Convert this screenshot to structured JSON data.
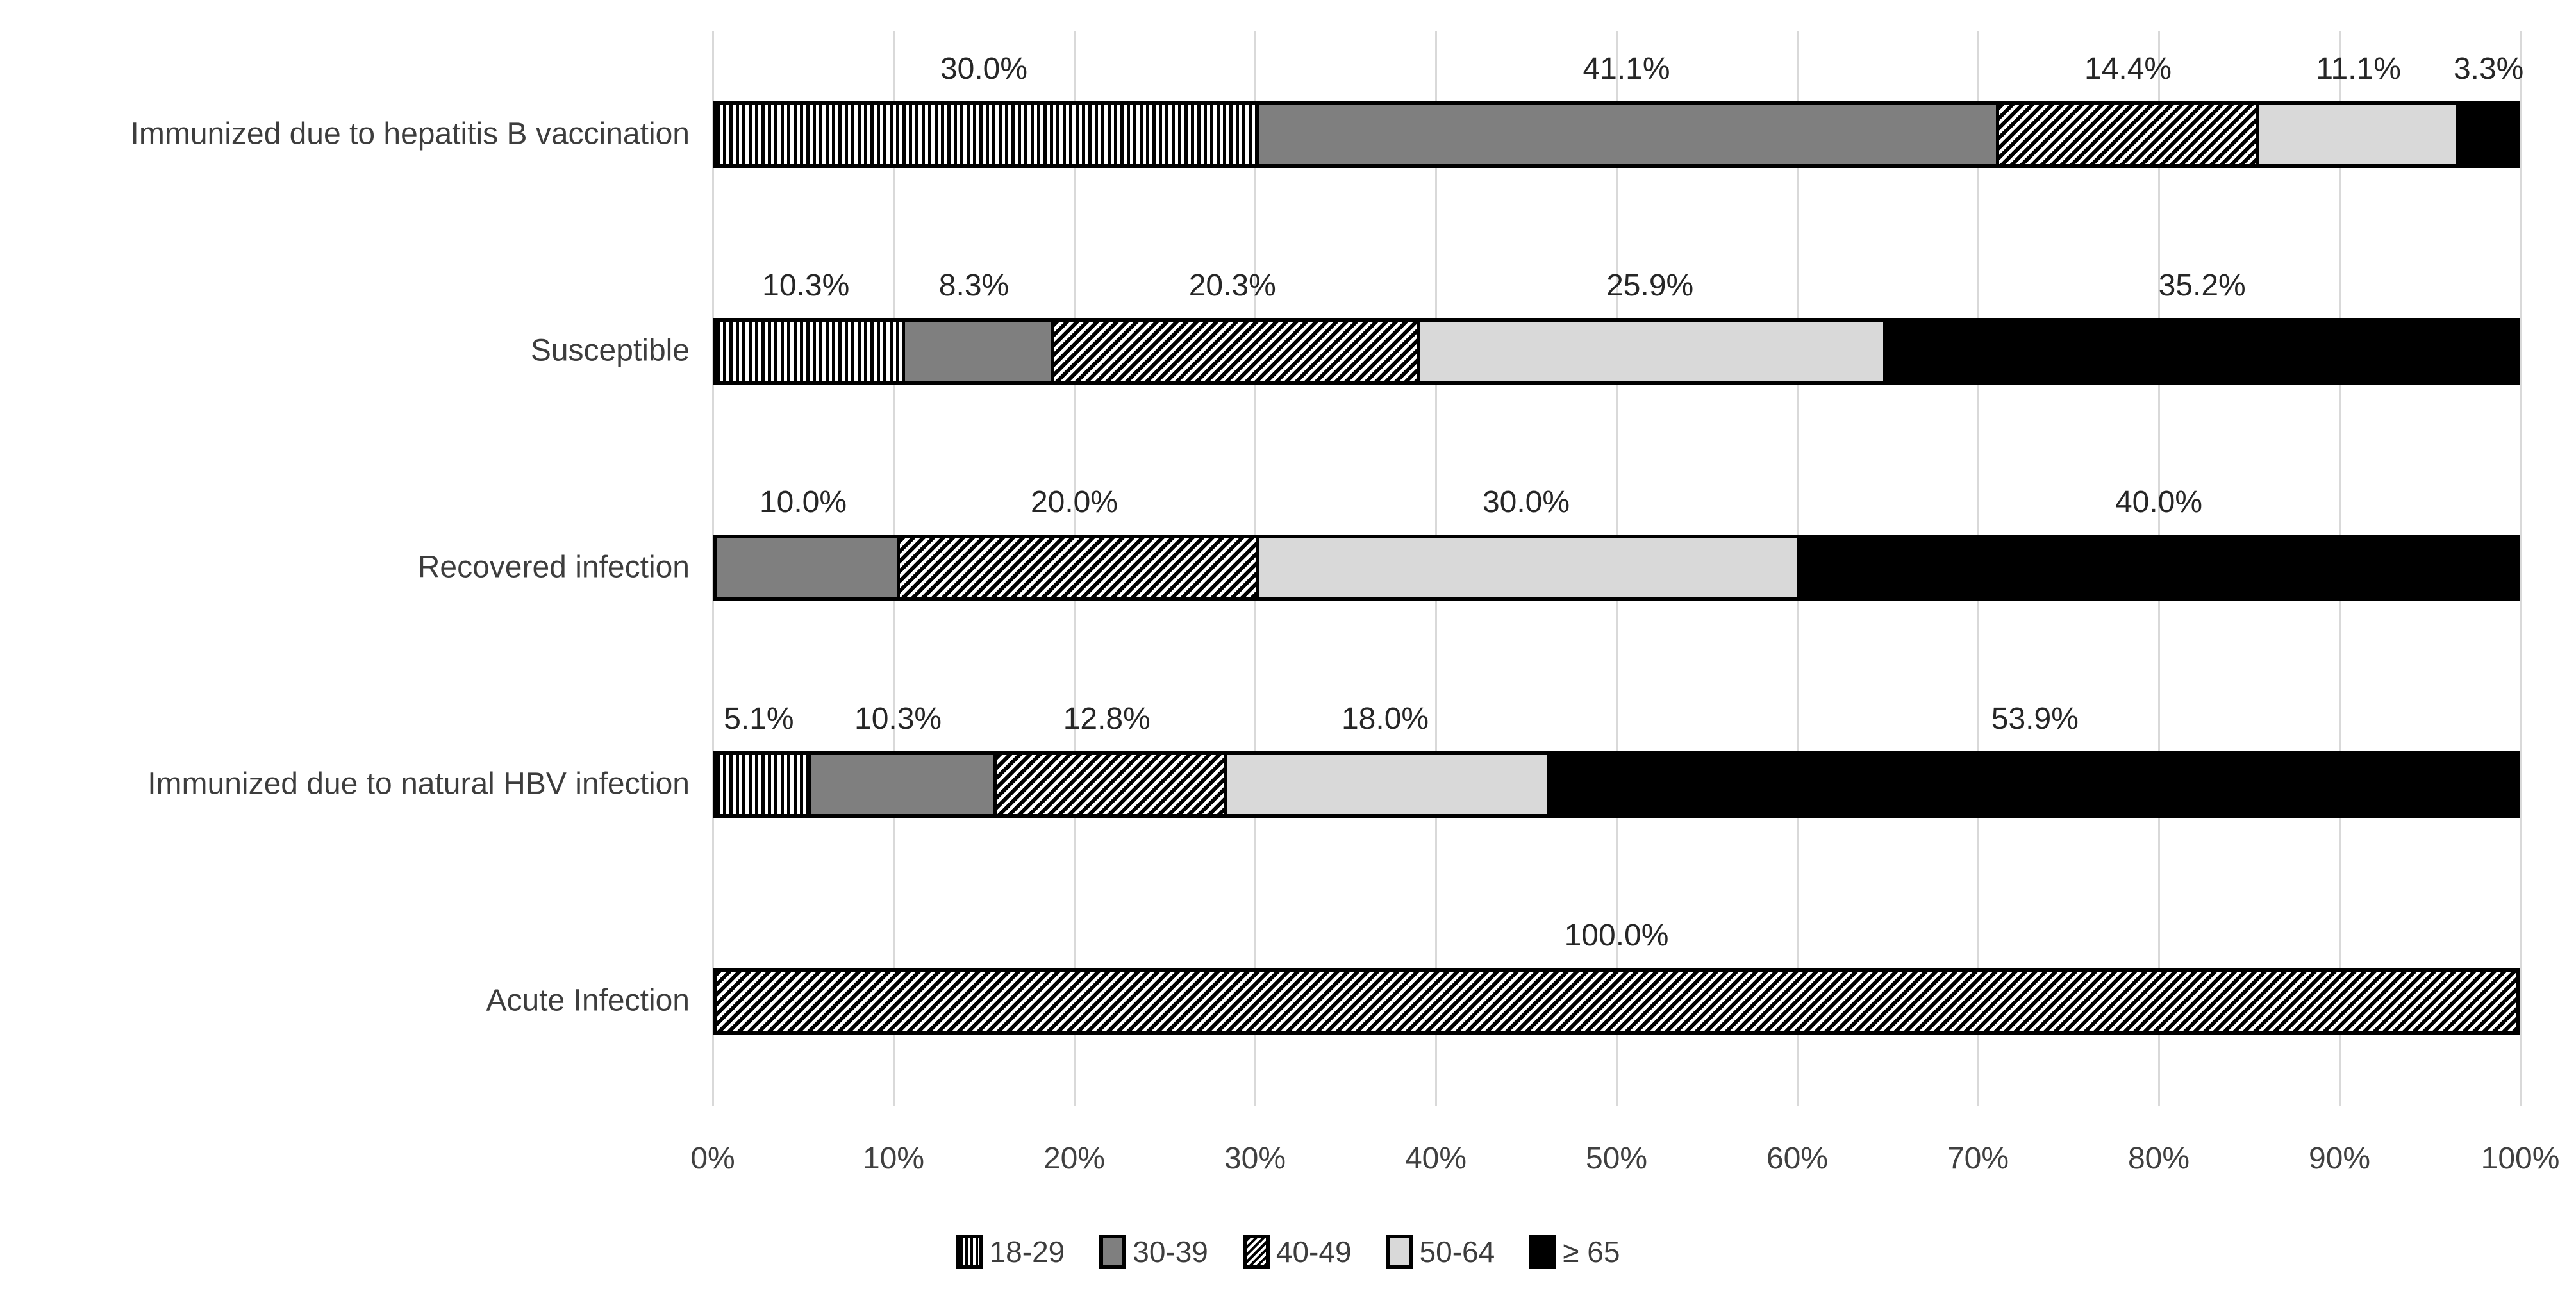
{
  "colors": {
    "bar_dark_gray": "#7f7f7f",
    "bar_light_gray": "#d9d9d9",
    "bar_black": "#000000",
    "gridline": "#d9d9d9",
    "label_text": "#3d3d3d",
    "value_label_text": "#262626",
    "tick_text": "#404040"
  },
  "chart_data": {
    "type": "bar",
    "stacked": true,
    "orientation": "horizontal",
    "title": "",
    "categories": [
      "Immunized due to hepatitis B vaccination",
      "Susceptible",
      "Recovered infection",
      "Immunized due to natural HBV infection",
      "Acute Infection"
    ],
    "series": [
      {
        "id": "age-18-29",
        "name": "18-29",
        "style": "vertical-stripes",
        "values": [
          30.0,
          10.3,
          0,
          5.1,
          0
        ],
        "labels": [
          "30.0%",
          "10.3%",
          "",
          "5.1%",
          ""
        ]
      },
      {
        "id": "age-30-39",
        "name": "30-39",
        "style": "solid-darkgray",
        "values": [
          41.1,
          8.3,
          10.0,
          10.3,
          0
        ],
        "labels": [
          "41.1%",
          "8.3%",
          "10.0%",
          "10.3%",
          ""
        ]
      },
      {
        "id": "age-40-49",
        "name": "40-49",
        "style": "diagonal-stripes",
        "values": [
          14.4,
          20.3,
          20.0,
          12.8,
          100.0
        ],
        "labels": [
          "14.4%",
          "20.3%",
          "20.0%",
          "12.8%",
          "100.0%"
        ]
      },
      {
        "id": "age-50-64",
        "name": "50-64",
        "style": "solid-lightgray",
        "values": [
          11.1,
          25.9,
          30.0,
          18.0,
          0
        ],
        "labels": [
          "11.1%",
          "25.9%",
          "30.0%",
          "18.0%",
          ""
        ]
      },
      {
        "id": "age-ge-65",
        "name": "≥ 65",
        "style": "solid-black",
        "values": [
          3.3,
          35.2,
          40.0,
          53.9,
          0
        ],
        "labels": [
          "3.3%",
          "35.2%",
          "40.0%",
          "53.9%",
          ""
        ]
      }
    ],
    "x_axis": {
      "min": 0,
      "max": 100,
      "ticks": [
        "0%",
        "10%",
        "20%",
        "30%",
        "40%",
        "50%",
        "60%",
        "70%",
        "80%",
        "90%",
        "100%"
      ],
      "gridlines": true
    },
    "legend": {
      "position": "bottom",
      "entries": [
        "18-29",
        "30-39",
        "40-49",
        "50-64",
        "≥ 65"
      ]
    }
  }
}
